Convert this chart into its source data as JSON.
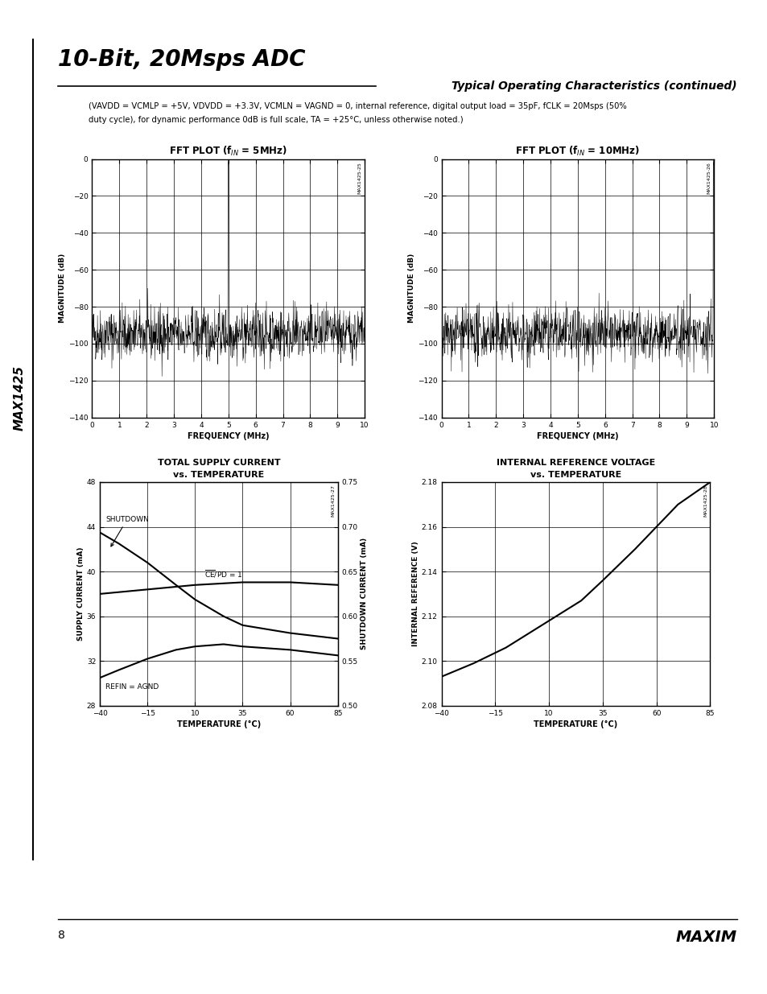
{
  "page_title": "10-Bit, 20Msps ADC",
  "section_title": "Typical Operating Characteristics (continued)",
  "subtitle_line1": "(VAVDD = VCMLP = +5V, VDVDD = +3.3V, VCMLN = VAGND = 0, internal reference, digital output load = 35pF, fCLK = 20Msps (50%",
  "subtitle_line2": "duty cycle), for dynamic performance 0dB is full scale, TA = +25°C, unless otherwise noted.)",
  "page_num": "8",
  "brand": "MAXIM",
  "sidebar_text": "MAX1425",
  "fft1": {
    "title": "FFT PLOT (f",
    "title_sub": "IN",
    "title_end": " = 5MHz)",
    "xlabel": "FREQUENCY (MHz)",
    "ylabel": "MAGNITUDE (dB)",
    "xlim": [
      0,
      10
    ],
    "ylim": [
      -140,
      0
    ],
    "yticks": [
      0,
      -20,
      -40,
      -60,
      -80,
      -100,
      -120,
      -140
    ],
    "xticks": [
      0,
      1,
      2,
      3,
      4,
      5,
      6,
      7,
      8,
      9,
      10
    ],
    "signal_freq": 5.0,
    "noise_floor": -95,
    "label": "MAX1425-25"
  },
  "fft2": {
    "title": "FFT PLOT (f",
    "title_sub": "IN",
    "title_end": " = 10MHz)",
    "xlabel": "FREQUENCY (MHz)",
    "ylabel": "MAGNITUDE (dB)",
    "xlim": [
      0,
      10
    ],
    "ylim": [
      -140,
      0
    ],
    "yticks": [
      0,
      -20,
      -40,
      -60,
      -80,
      -100,
      -120,
      -140
    ],
    "xticks": [
      0,
      1,
      2,
      3,
      4,
      5,
      6,
      7,
      8,
      9,
      10
    ],
    "signal_freq": 9.98,
    "noise_floor": -95,
    "label": "MAX1425-26"
  },
  "supply_current": {
    "title1": "TOTAL SUPPLY CURRENT",
    "title2": "vs. TEMPERATURE",
    "xlabel": "TEMPERATURE (°C)",
    "ylabel_left": "SUPPLY CURRENT (mA)",
    "ylabel_right": "SHUTDOWN CURRENT (mA)",
    "xlim": [
      -40,
      85
    ],
    "ylim_left": [
      28,
      48
    ],
    "ylim_right": [
      0.5,
      0.75
    ],
    "yticks_left": [
      28,
      32,
      36,
      40,
      44,
      48
    ],
    "yticks_right": [
      0.5,
      0.55,
      0.6,
      0.65,
      0.7,
      0.75
    ],
    "xticks": [
      -40,
      -15,
      10,
      35,
      60,
      85
    ],
    "label": "MAX1425-27",
    "shutdown_temps": [
      -40,
      -30,
      -15,
      0,
      10,
      25,
      35,
      60,
      85
    ],
    "shutdown_vals": [
      43.5,
      42.5,
      40.8,
      38.8,
      37.5,
      36.0,
      35.2,
      34.5,
      34.0
    ],
    "refin_temps": [
      -40,
      -30,
      -15,
      0,
      10,
      25,
      35,
      60,
      85
    ],
    "refin_vals": [
      30.5,
      31.2,
      32.2,
      33.0,
      33.3,
      33.5,
      33.3,
      33.0,
      32.5
    ],
    "ce_temps": [
      -40,
      -15,
      10,
      35,
      60,
      85
    ],
    "ce_vals": [
      0.625,
      0.63,
      0.635,
      0.638,
      0.638,
      0.635
    ],
    "ann_shutdown_x": -37,
    "ann_shutdown_y": 44.5,
    "ann_refin_x": -37,
    "ann_refin_y": 30.0,
    "ann_ce_x": 15,
    "ann_ce_y": 0.641
  },
  "int_ref": {
    "title1": "INTERNAL REFERENCE VOLTAGE",
    "title2": "vs. TEMPERATURE",
    "xlabel": "TEMPERATURE (°C)",
    "ylabel": "INTERNAL REFERENCE (V)",
    "xlim": [
      -40,
      85
    ],
    "ylim": [
      2.08,
      2.18
    ],
    "yticks": [
      2.08,
      2.1,
      2.12,
      2.14,
      2.16,
      2.18
    ],
    "xticks": [
      -40,
      -15,
      10,
      35,
      60,
      85
    ],
    "label": "MAX1425-28",
    "temps": [
      -40,
      -25,
      -10,
      0,
      10,
      25,
      35,
      50,
      60,
      70,
      85
    ],
    "vals": [
      2.093,
      2.099,
      2.106,
      2.112,
      2.118,
      2.127,
      2.136,
      2.15,
      2.16,
      2.17,
      2.18
    ]
  },
  "bg_color": "#ffffff",
  "text_color": "#000000"
}
